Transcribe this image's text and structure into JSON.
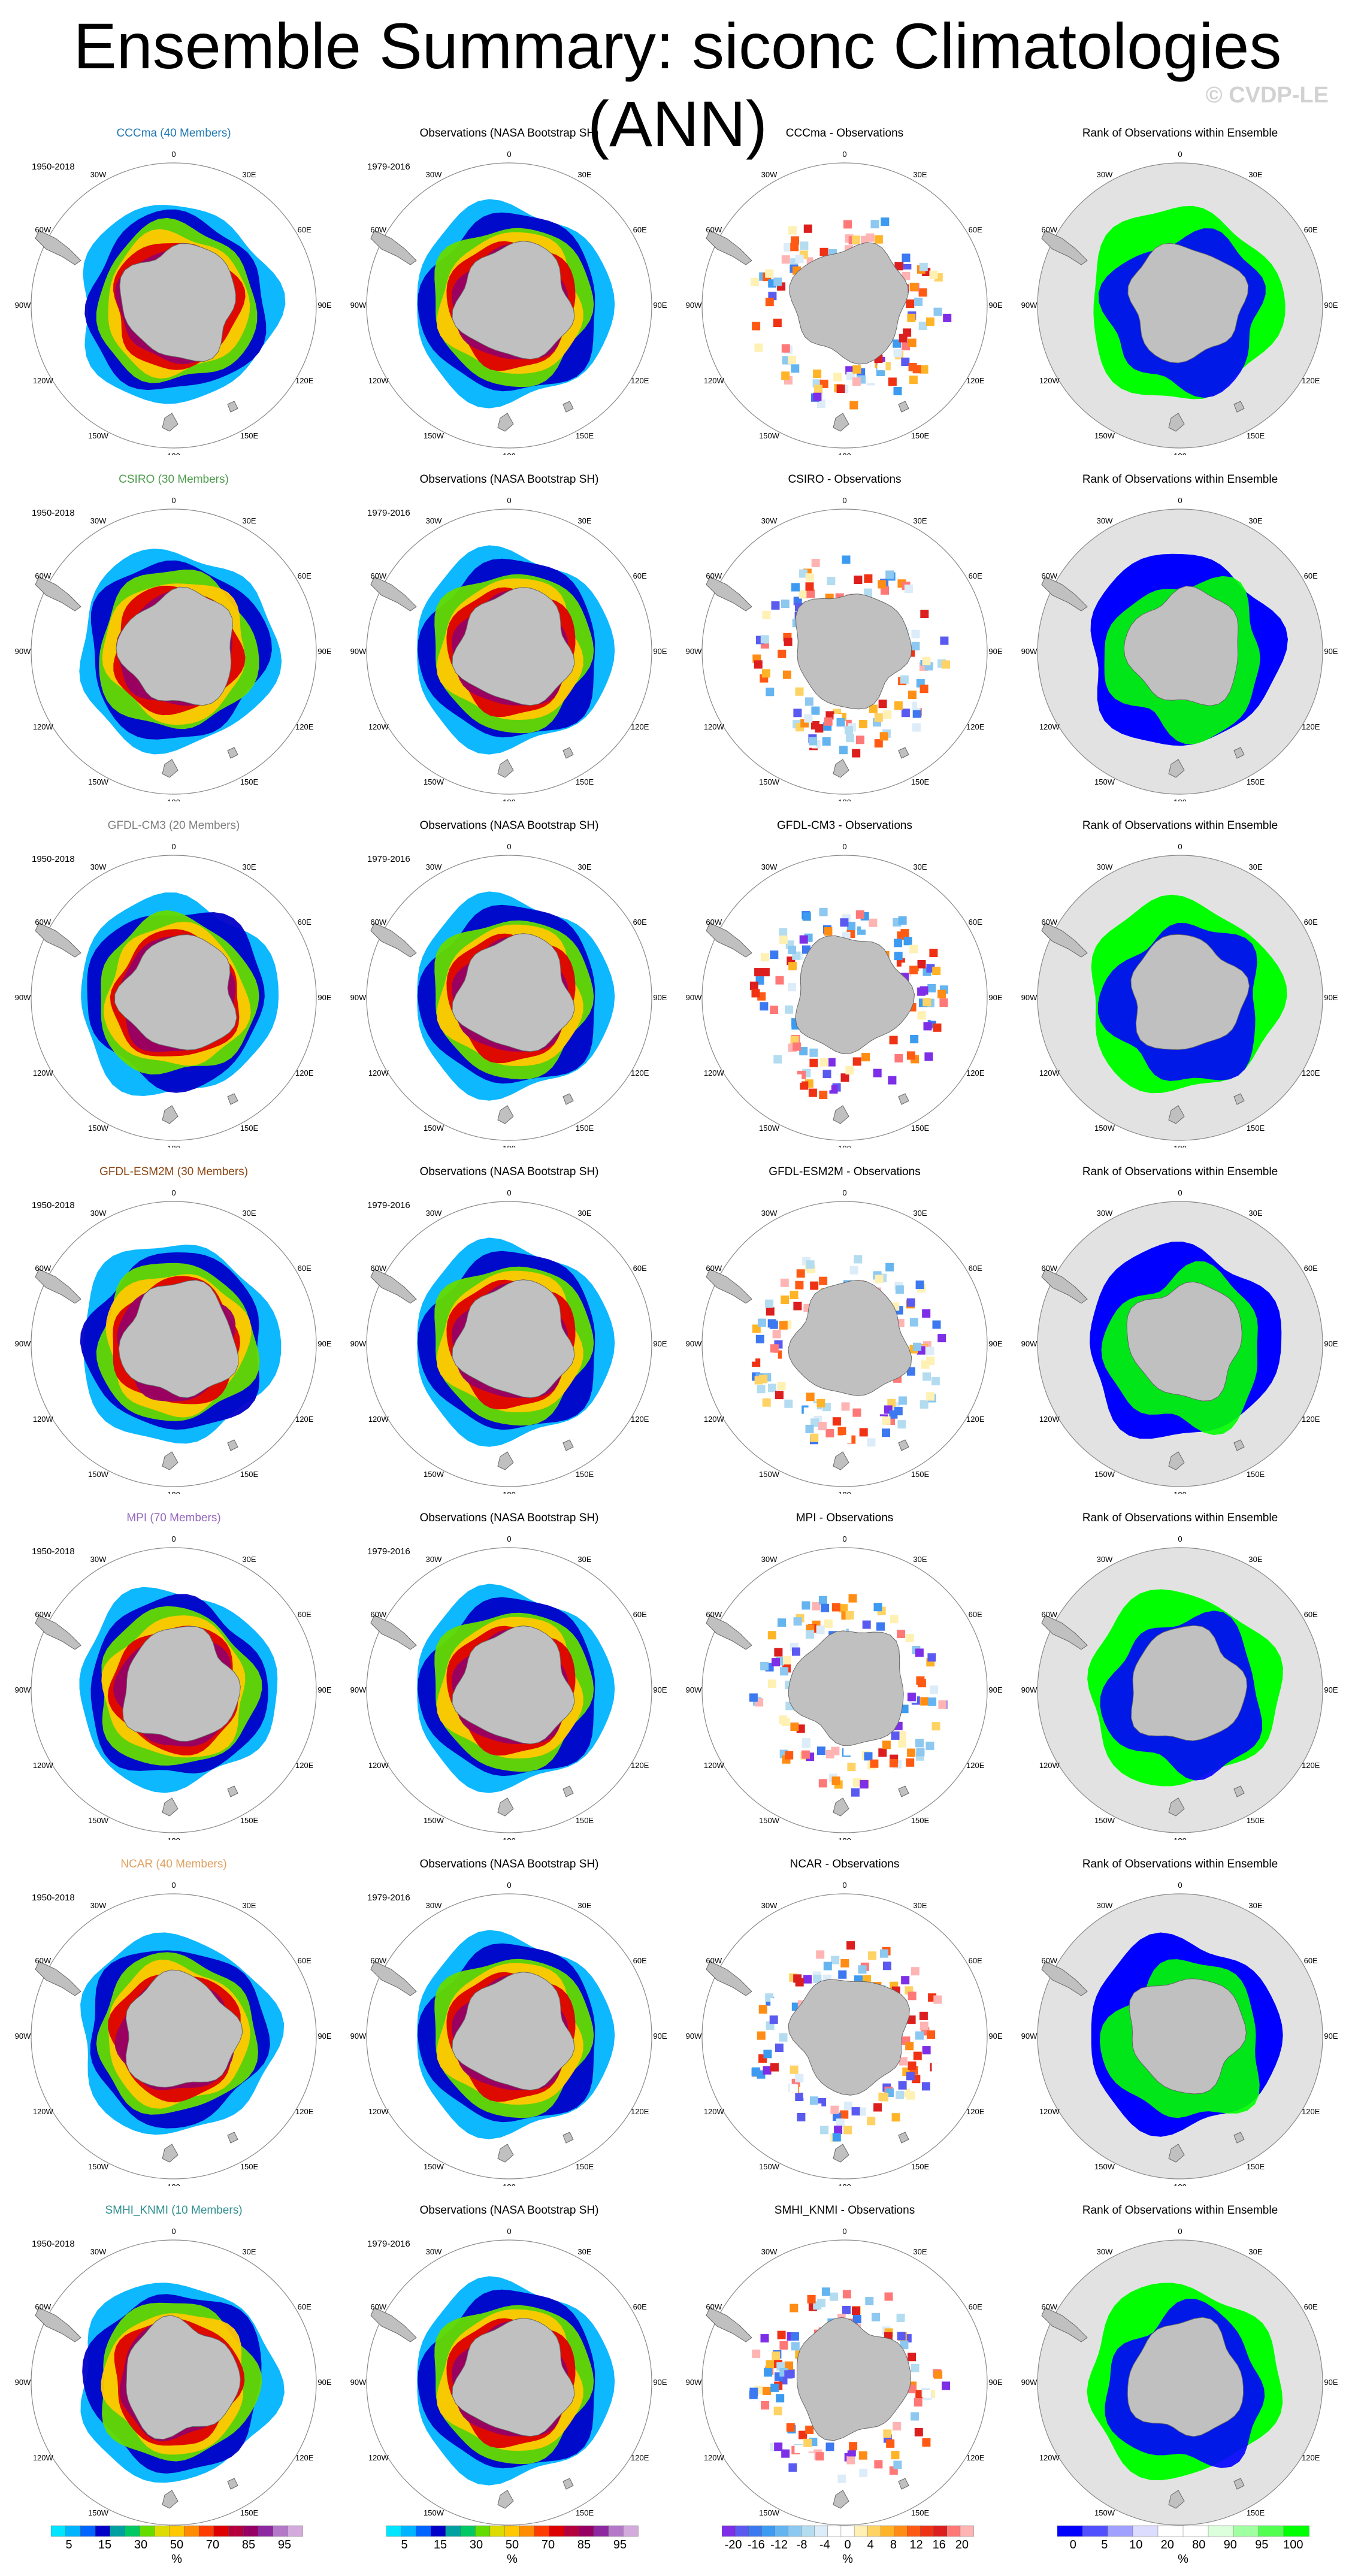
{
  "title": "Ensemble Summary: siconc Climatologies (ANN)",
  "watermark": "© CVDP-LE",
  "observation_title": "Observations (NASA Bootstrap SH)",
  "rank_title": "Rank of Observations within Ensemble",
  "model_period": "1950-2018",
  "obs_period": "1979-2016",
  "longitude_labels": [
    "0",
    "30E",
    "60E",
    "90E",
    "120E",
    "150E",
    "180",
    "150W",
    "120W",
    "90W",
    "60W",
    "30W"
  ],
  "colors": {
    "background": "#ffffff",
    "land": "#c0c0c0",
    "ocean_rank_panel": "#e2e2e2",
    "rank_low": "#0000ff",
    "rank_high": "#00ff00",
    "diff_negative": "#8a2be2",
    "diff_positive": "#ff0000"
  },
  "models": [
    {
      "name": "CCCma (40 Members)",
      "color": "#1f77b4",
      "diff_title": "CCCma - Observations"
    },
    {
      "name": "CSIRO (30 Members)",
      "color": "#4d9a4d",
      "diff_title": "CSIRO - Observations"
    },
    {
      "name": "GFDL-CM3 (20 Members)",
      "color": "#7f7f7f",
      "diff_title": "GFDL-CM3 - Observations"
    },
    {
      "name": "GFDL-ESM2M (30 Members)",
      "color": "#8b4513",
      "diff_title": "GFDL-ESM2M - Observations"
    },
    {
      "name": "MPI (70 Members)",
      "color": "#9467bd",
      "diff_title": "MPI - Observations"
    },
    {
      "name": "NCAR (40 Members)",
      "color": "#e0a060",
      "diff_title": "NCAR - Observations"
    },
    {
      "name": "SMHI_KNMI (10 Members)",
      "color": "#2f8f8f",
      "diff_title": "SMHI_KNMI - Observations"
    }
  ],
  "chart_data": {
    "type": "heatmap",
    "colorbars": [
      {
        "name": "climatology",
        "unit": "%",
        "tick_labels": [
          "5",
          "15",
          "30",
          "50",
          "70",
          "85",
          "95"
        ],
        "colors": [
          "#00e5ff",
          "#00b4ff",
          "#0064ff",
          "#0000c8",
          "#00a0a0",
          "#00c864",
          "#64dc00",
          "#dcdc00",
          "#ffc800",
          "#ff8c00",
          "#ff3c00",
          "#dc0000",
          "#b4003c",
          "#960064",
          "#8c28a0",
          "#b478c8",
          "#d2aadc"
        ]
      },
      {
        "name": "difference",
        "unit": "%",
        "tick_labels": [
          "-20",
          "-16",
          "-12",
          "-8",
          "-4",
          "0",
          "4",
          "8",
          "12",
          "16",
          "20"
        ],
        "colors": [
          "#7d2ee6",
          "#5a5af0",
          "#3c78f0",
          "#3c9bf0",
          "#64b4f0",
          "#8cc8f0",
          "#b4dcf0",
          "#dcecf8",
          "#ffffff",
          "#ffffff",
          "#fff0b4",
          "#ffd264",
          "#ffb428",
          "#ff8c14",
          "#ff5a14",
          "#f03214",
          "#dc1e1e",
          "#ff7878",
          "#ffb4b4"
        ]
      },
      {
        "name": "rank",
        "unit": "%",
        "tick_labels": [
          "0",
          "5",
          "10",
          "20",
          "80",
          "90",
          "95",
          "100"
        ],
        "colors": [
          "#0000ff",
          "#5050ff",
          "#a0a0ff",
          "#dcdcff",
          "#ffffff",
          "#ffffff",
          "#dcffdc",
          "#a0ffa0",
          "#50ff50",
          "#00ff00"
        ]
      }
    ]
  }
}
